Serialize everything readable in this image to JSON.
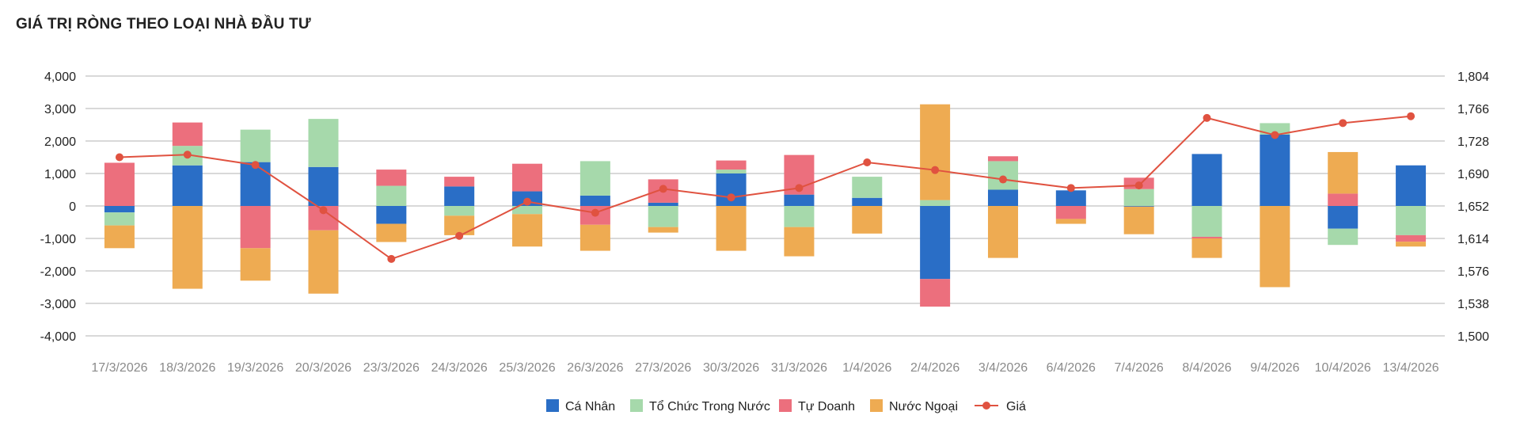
{
  "title": "GIÁ TRỊ RÒNG THEO LOẠI NHÀ ĐẦU TƯ",
  "chart_data": {
    "type": "bar",
    "stacked": true,
    "categories": [
      "17/3/2026",
      "18/3/2026",
      "19/3/2026",
      "20/3/2026",
      "23/3/2026",
      "24/3/2026",
      "25/3/2026",
      "26/3/2026",
      "27/3/2026",
      "30/3/2026",
      "31/3/2026",
      "1/4/2026",
      "2/4/2026",
      "3/4/2026",
      "6/4/2026",
      "7/4/2026",
      "8/4/2026",
      "9/4/2026",
      "10/4/2026",
      "13/4/2026"
    ],
    "series": [
      {
        "name": "Cá Nhân",
        "color": "#2a6ec6",
        "values": [
          -200,
          1250,
          1350,
          1200,
          -550,
          600,
          450,
          320,
          100,
          1000,
          350,
          250,
          -2250,
          500,
          480,
          -20,
          1600,
          2200,
          -700,
          1250
        ]
      },
      {
        "name": "Tổ Chức Trong Nước",
        "color": "#a6d9ab",
        "values": [
          -400,
          600,
          1000,
          1480,
          620,
          -300,
          -250,
          1060,
          -650,
          120,
          -650,
          650,
          180,
          880,
          0,
          520,
          -950,
          350,
          -500,
          -900
        ]
      },
      {
        "name": "Tự Doanh",
        "color": "#ec6f7d",
        "values": [
          1330,
          720,
          -1300,
          -750,
          500,
          300,
          850,
          -580,
          720,
          280,
          1220,
          0,
          -850,
          150,
          -400,
          350,
          -50,
          0,
          380,
          -200
        ]
      },
      {
        "name": "Nước Ngoại",
        "color": "#eeab52",
        "values": [
          -700,
          -2550,
          -1000,
          -1950,
          -560,
          -600,
          -1000,
          -800,
          -170,
          -1380,
          -900,
          -850,
          2950,
          -1600,
          -150,
          -850,
          -600,
          -2500,
          1280,
          -150
        ]
      }
    ],
    "line": {
      "name": "Giá",
      "color": "#e05240",
      "axis": "right",
      "values": [
        1709,
        1712,
        1700,
        1647,
        1590,
        1617,
        1657,
        1644,
        1672,
        1662,
        1673,
        1703,
        1694,
        1683,
        1673,
        1676,
        1755,
        1735,
        1749,
        1757
      ]
    },
    "y_left": {
      "min": -4000,
      "max": 4000,
      "step": 1000,
      "ticks": [
        "-4,000",
        "-3,000",
        "-2,000",
        "-1,000",
        "0",
        "1,000",
        "2,000",
        "3,000",
        "4,000"
      ]
    },
    "y_right": {
      "min": 1500,
      "max": 1804,
      "ticks": [
        "1,500",
        "1,538",
        "1,576",
        "1,614",
        "1,652",
        "1,690",
        "1,728",
        "1,766",
        "1,804"
      ]
    },
    "grid": true,
    "legend_position": "bottom"
  }
}
